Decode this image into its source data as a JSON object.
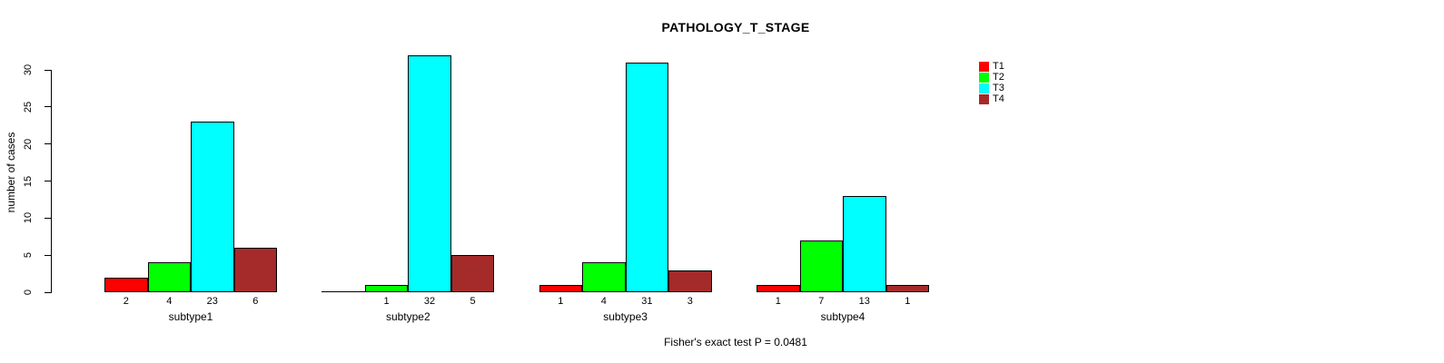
{
  "chart_data": {
    "type": "bar",
    "title": "PATHOLOGY_T_STAGE",
    "ylabel": "number of cases",
    "xlabel": "",
    "ylim": [
      0,
      30
    ],
    "yticks": [
      0,
      5,
      10,
      15,
      20,
      25,
      30
    ],
    "grid": false,
    "legend_position": "top-right",
    "categories": [
      "subtype1",
      "subtype2",
      "subtype3",
      "subtype4"
    ],
    "series": [
      {
        "name": "T1",
        "color": "#ff0000",
        "values": [
          2,
          0,
          1,
          1
        ]
      },
      {
        "name": "T2",
        "color": "#00ff00",
        "values": [
          4,
          1,
          4,
          7
        ]
      },
      {
        "name": "T3",
        "color": "#00ffff",
        "values": [
          23,
          32,
          31,
          13
        ]
      },
      {
        "name": "T4",
        "color": "#a52a2a",
        "values": [
          6,
          5,
          3,
          1
        ]
      }
    ],
    "bar_value_labels": true,
    "zero_values_unlabeled": true,
    "footer": "Fisher's exact test P = 0.0481"
  }
}
